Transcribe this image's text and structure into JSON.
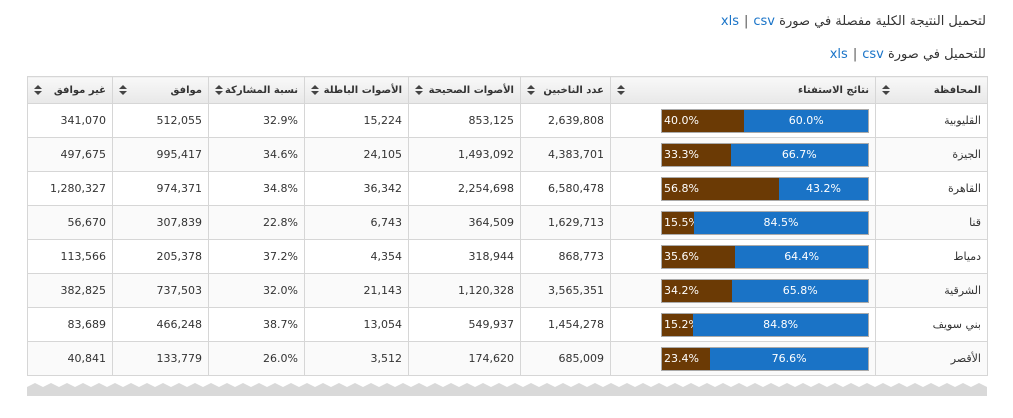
{
  "links": [
    {
      "text": "لتحميل النتيجة الكلية مفصلة في صورة",
      "xls": "xls",
      "separator": "|",
      "csv": "csv"
    },
    {
      "text": "للتحميل في صورة",
      "xls": "xls",
      "separator": "|",
      "csv": "csv"
    }
  ],
  "table": {
    "header": [
      "المحافظة",
      "نتائج الاستفتاء",
      "عدد الناخبين",
      "الأصوات الصحيحة",
      "الأصوات الباطلة",
      "نسبة المشاركة",
      "موافق",
      "غير موافق"
    ],
    "rows": [
      [
        "القليوبية",
        {
          "yes": {
            "value": 60.0,
            "label": "60.0%"
          },
          "no": {
            "value": 40.0,
            "label": "40.0%"
          }
        },
        "2,639,808",
        "853,125",
        "15,224",
        "32.9%",
        "512,055",
        "341,070"
      ],
      [
        "الجيزة",
        {
          "yes": {
            "value": 66.7,
            "label": "66.7%"
          },
          "no": {
            "value": 33.3,
            "label": "33.3%"
          }
        },
        "4,383,701",
        "1,493,092",
        "24,105",
        "34.6%",
        "995,417",
        "497,675"
      ],
      [
        "القاهرة",
        {
          "yes": {
            "value": 43.2,
            "label": "43.2%"
          },
          "no": {
            "value": 56.8,
            "label": "56.8%"
          }
        },
        "6,580,478",
        "2,254,698",
        "36,342",
        "34.8%",
        "974,371",
        "1,280,327"
      ],
      [
        "قنا",
        {
          "yes": {
            "value": 84.5,
            "label": "84.5%"
          },
          "no": {
            "value": 15.5,
            "label": "15.5%"
          }
        },
        "1,629,713",
        "364,509",
        "6,743",
        "22.8%",
        "307,839",
        "56,670"
      ],
      [
        "دمياط",
        {
          "yes": {
            "value": 64.4,
            "label": "64.4%"
          },
          "no": {
            "value": 35.6,
            "label": "35.6%"
          }
        },
        "868,773",
        "318,944",
        "4,354",
        "37.2%",
        "205,378",
        "113,566"
      ],
      [
        "الشرقية",
        {
          "yes": {
            "value": 65.8,
            "label": "65.8%"
          },
          "no": {
            "value": 34.2,
            "label": "34.2%"
          }
        },
        "3,565,351",
        "1,120,328",
        "21,143",
        "32.0%",
        "737,503",
        "382,825"
      ],
      [
        "بني سويف",
        {
          "yes": {
            "value": 84.8,
            "label": "84.8%"
          },
          "no": {
            "value": 15.2,
            "label": "15.2%"
          }
        },
        "1,454,278",
        "549,937",
        "13,054",
        "38.7%",
        "466,248",
        "83,689"
      ],
      [
        "الأقصر",
        {
          "yes": {
            "value": 76.6,
            "label": "76.6%"
          },
          "no": {
            "value": 23.4,
            "label": "23.4%"
          }
        },
        "685,009",
        "174,620",
        "3,512",
        "26.0%",
        "133,779",
        "40,841"
      ]
    ]
  }
}
